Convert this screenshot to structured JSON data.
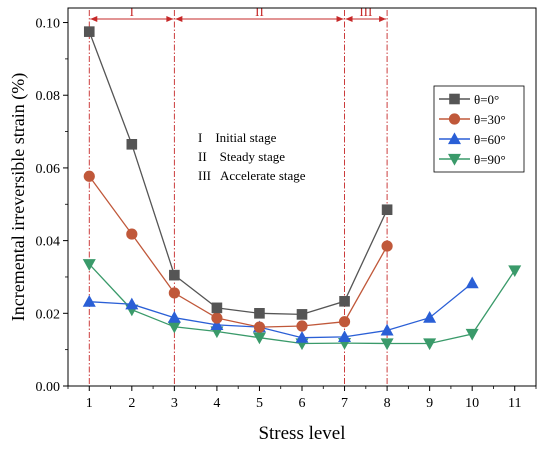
{
  "chart_data": {
    "type": "line",
    "xlabel": "Stress level",
    "ylabel": "Incremental irreversible strain (%)",
    "xlim": [
      0.5,
      11.5
    ],
    "ylim": [
      0,
      0.104
    ],
    "xticks": [
      1,
      2,
      3,
      4,
      5,
      6,
      7,
      8,
      9,
      10,
      11
    ],
    "yticks": [
      0.0,
      0.02,
      0.04,
      0.06,
      0.08,
      0.1
    ],
    "ytick_labels": [
      "0.00",
      "0.02",
      "0.04",
      "0.06",
      "0.08",
      "0.10"
    ],
    "grid": false,
    "legend_position": "right",
    "series": [
      {
        "name": "θ=0°",
        "color": "#555555",
        "marker": "square",
        "x": [
          1,
          2,
          3,
          4,
          5,
          6,
          7,
          8
        ],
        "y": [
          0.0975,
          0.0665,
          0.0305,
          0.0215,
          0.02,
          0.0197,
          0.0233,
          0.0485
        ]
      },
      {
        "name": "θ=30°",
        "color": "#c0583a",
        "marker": "circle",
        "x": [
          1,
          2,
          3,
          4,
          5,
          6,
          7,
          8
        ],
        "y": [
          0.0577,
          0.0418,
          0.0256,
          0.0187,
          0.0162,
          0.0165,
          0.0177,
          0.0385
        ]
      },
      {
        "name": "θ=60°",
        "color": "#2a5fd6",
        "marker": "triangle-up",
        "x": [
          1,
          2,
          3,
          4,
          5,
          6,
          7,
          8,
          9,
          10
        ],
        "y": [
          0.0232,
          0.0225,
          0.0188,
          0.0168,
          0.0162,
          0.0133,
          0.0135,
          0.0153,
          0.0188,
          0.0283
        ]
      },
      {
        "name": "θ=90°",
        "color": "#3a9a6a",
        "marker": "triangle-down",
        "x": [
          1,
          2,
          3,
          4,
          5,
          6,
          7,
          8,
          9,
          10,
          11
        ],
        "y": [
          0.0335,
          0.021,
          0.0163,
          0.015,
          0.0133,
          0.0117,
          0.0118,
          0.0117,
          0.0117,
          0.0143,
          0.0318
        ]
      }
    ],
    "stages": [
      {
        "label": "I",
        "from": 1,
        "to": 3
      },
      {
        "label": "II",
        "from": 3,
        "to": 7
      },
      {
        "label": "III",
        "from": 7,
        "to": 8
      }
    ],
    "stage_color": "#c62828",
    "annotations": [
      "I    Initial stage",
      "II    Steady stage",
      "III   Accelerate stage"
    ]
  }
}
